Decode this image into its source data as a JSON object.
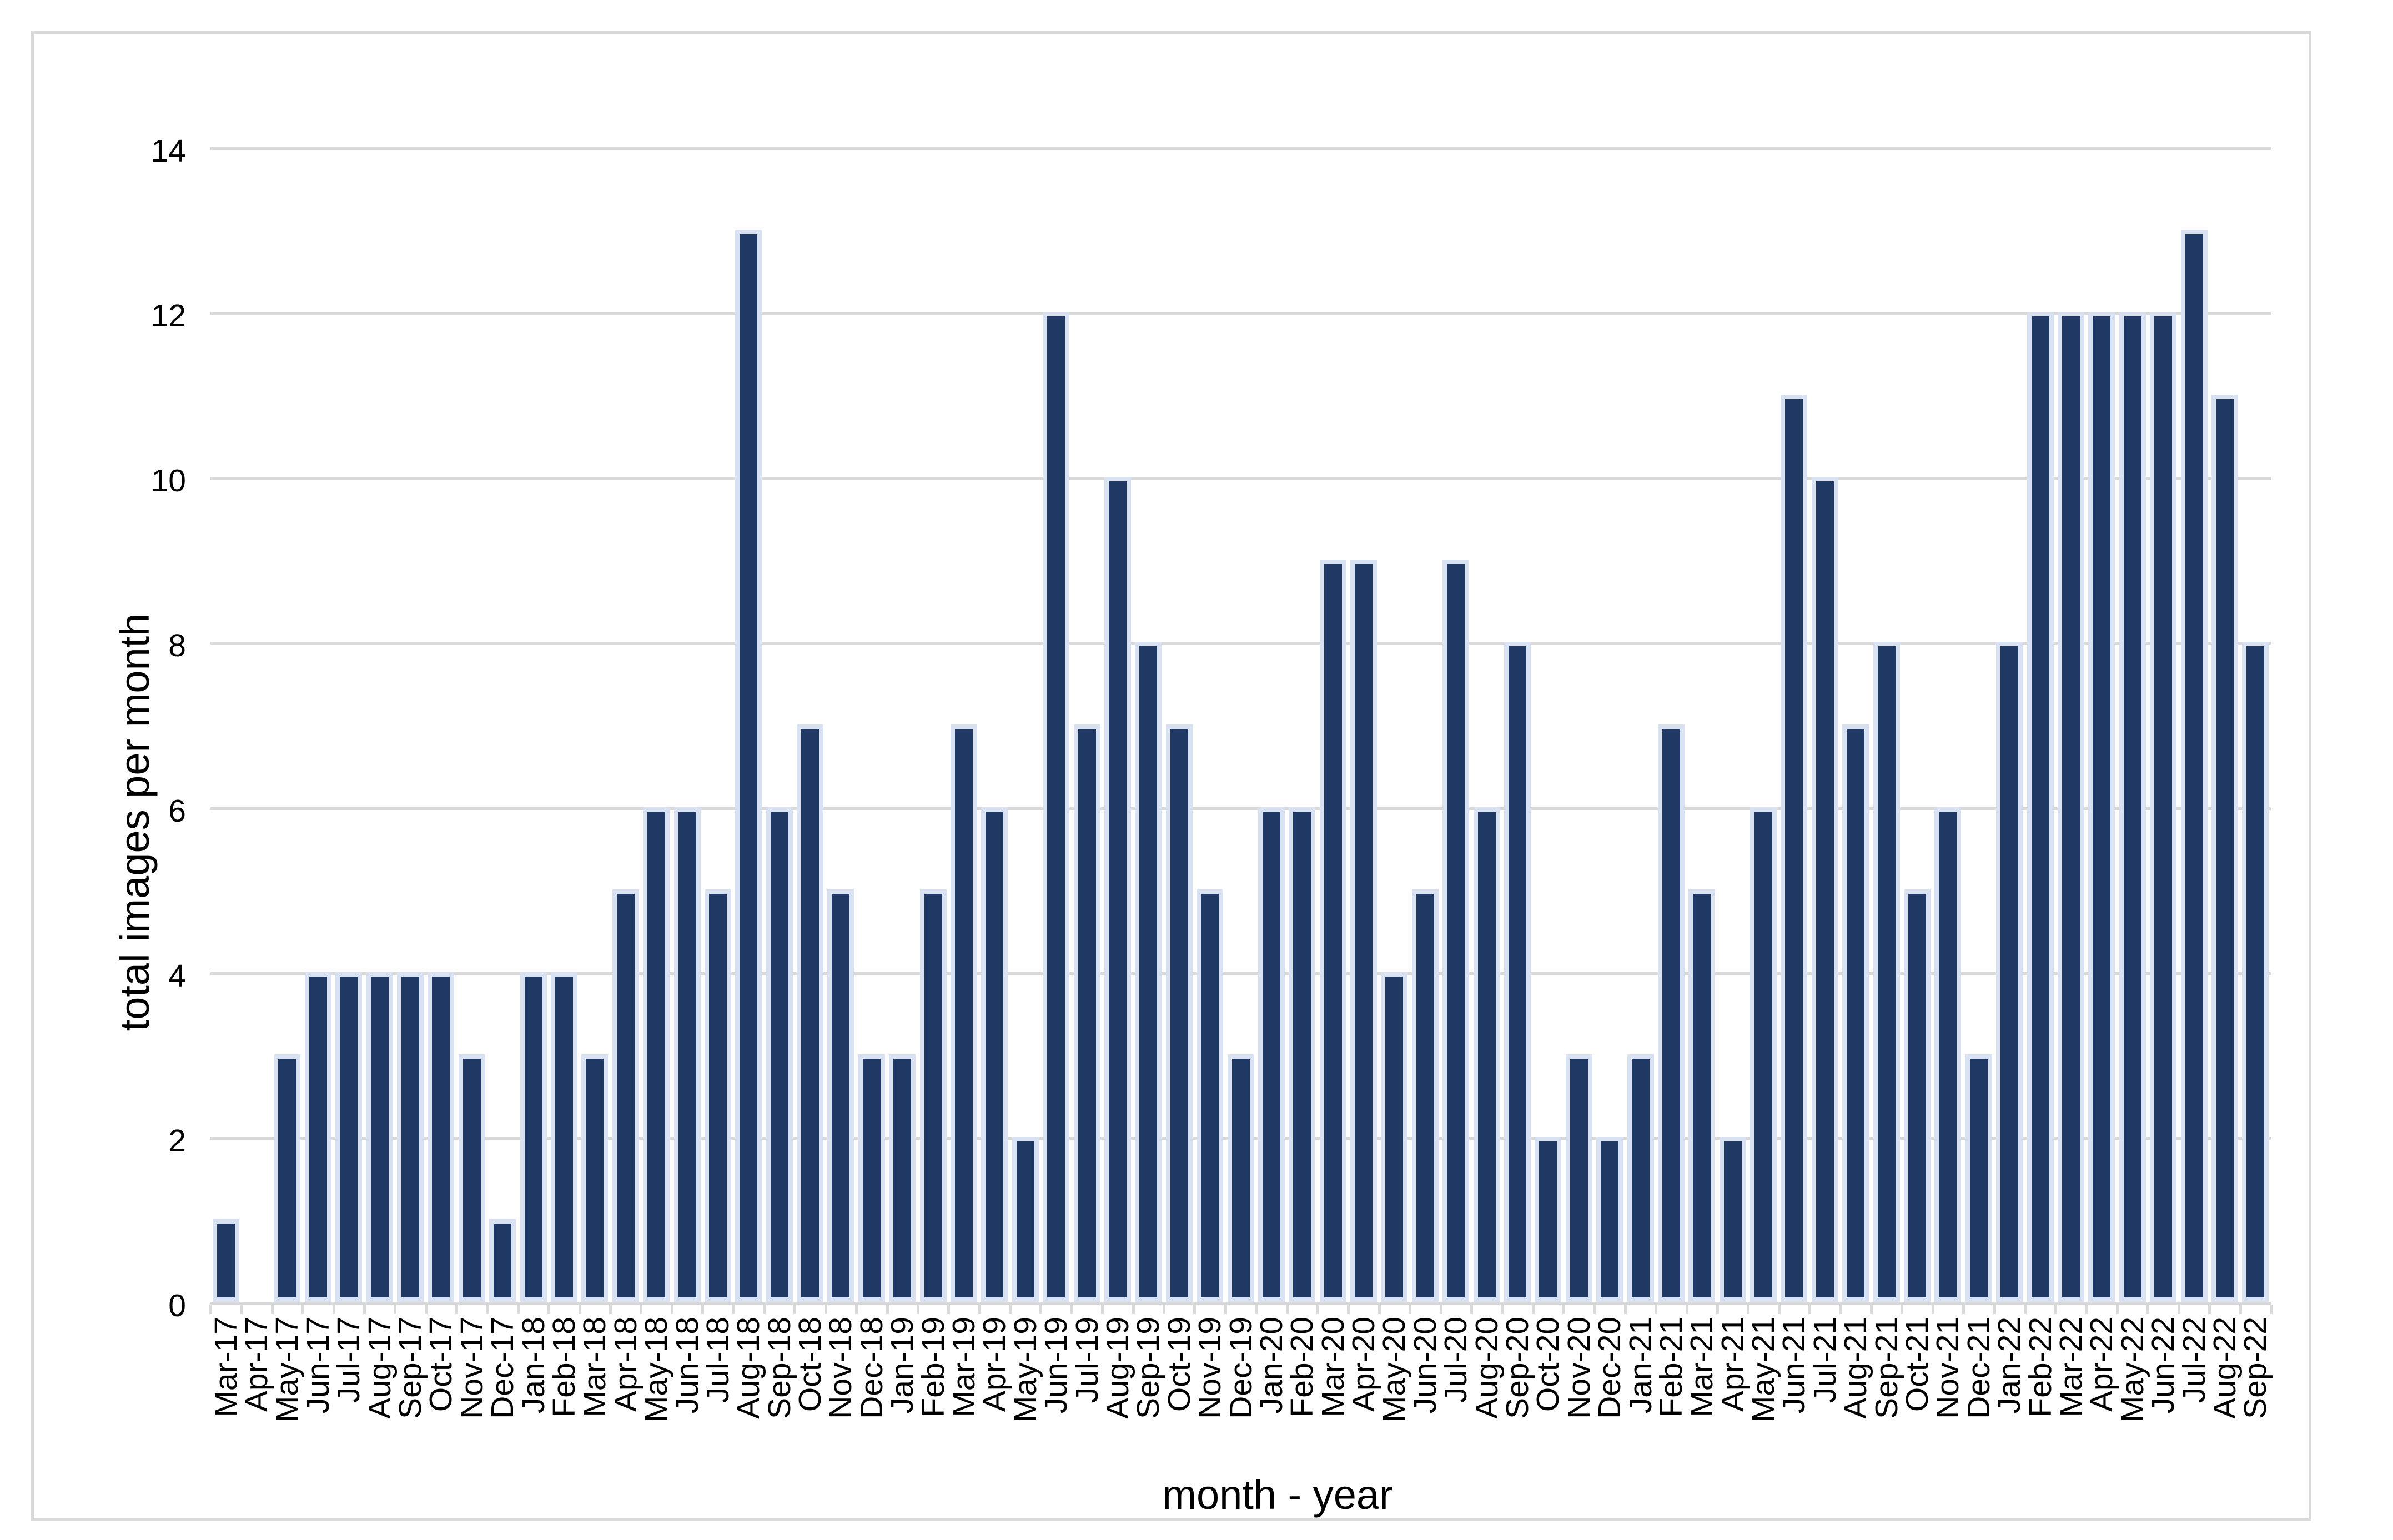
{
  "chart_data": {
    "type": "bar",
    "title": "",
    "xlabel": "month - year",
    "ylabel": "total images per month",
    "categories": [
      "Mar-17",
      "Apr-17",
      "May-17",
      "Jun-17",
      "Jul-17",
      "Aug-17",
      "Sep-17",
      "Oct-17",
      "Nov-17",
      "Dec-17",
      "Jan-18",
      "Feb-18",
      "Mar-18",
      "Apr-18",
      "May-18",
      "Jun-18",
      "Jul-18",
      "Aug-18",
      "Sep-18",
      "Oct-18",
      "Nov-18",
      "Dec-18",
      "Jan-19",
      "Feb-19",
      "Mar-19",
      "Apr-19",
      "May-19",
      "Jun-19",
      "Jul-19",
      "Aug-19",
      "Sep-19",
      "Oct-19",
      "Nov-19",
      "Dec-19",
      "Jan-20",
      "Feb-20",
      "Mar-20",
      "Apr-20",
      "May-20",
      "Jun-20",
      "Jul-20",
      "Aug-20",
      "Sep-20",
      "Oct-20",
      "Nov-20",
      "Dec-20",
      "Jan-21",
      "Feb-21",
      "Mar-21",
      "Apr-21",
      "May-21",
      "Jun-21",
      "Jul-21",
      "Aug-21",
      "Sep-21",
      "Oct-21",
      "Nov-21",
      "Dec-21",
      "Jan-22",
      "Feb-22",
      "Mar-22",
      "Apr-22",
      "May-22",
      "Jun-22",
      "Jul-22",
      "Aug-22",
      "Sep-22"
    ],
    "values": [
      1,
      0,
      3,
      4,
      4,
      4,
      4,
      4,
      3,
      1,
      4,
      4,
      3,
      5,
      6,
      6,
      5,
      13,
      6,
      7,
      5,
      3,
      3,
      5,
      7,
      6,
      2,
      12,
      7,
      10,
      8,
      7,
      5,
      3,
      6,
      6,
      9,
      9,
      4,
      5,
      9,
      6,
      8,
      2,
      3,
      2,
      3,
      7,
      5,
      2,
      6,
      11,
      10,
      7,
      8,
      5,
      6,
      3,
      8,
      12,
      12,
      12,
      12,
      12,
      13,
      11,
      8
    ],
    "ylim": [
      0,
      14
    ],
    "ytick_step": 2,
    "yticks": [
      0,
      2,
      4,
      6,
      8,
      10,
      12,
      14
    ],
    "grid": true,
    "legend": "none",
    "bar_color": "#1F3864",
    "bar_border_color": "#D9E2F3",
    "gridline_color": "#D9D9D9",
    "axis_line_color": "#D9D9D9",
    "chart_border_color": "#D9D9D9",
    "text_color": "#000000"
  }
}
